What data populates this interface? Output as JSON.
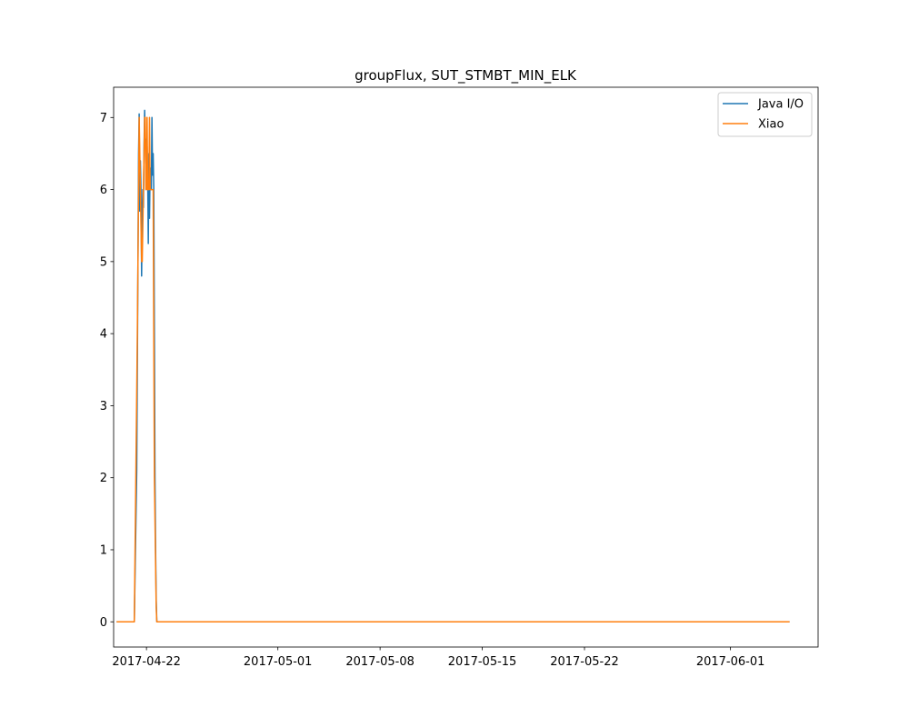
{
  "chart_data": {
    "type": "line",
    "title": "groupFlux, SUT_STMBT_MIN_ELK",
    "xlabel": "",
    "ylabel": "",
    "x_axis": {
      "kind": "date",
      "range": [
        "2017-04-19T18:00",
        "2017-06-07T00:00"
      ],
      "ticks": [
        "2017-04-22",
        "2017-05-01",
        "2017-05-08",
        "2017-05-15",
        "2017-05-22",
        "2017-06-01"
      ]
    },
    "y_axis": {
      "range": [
        -0.35,
        7.42
      ],
      "ticks": [
        "0",
        "1",
        "2",
        "3",
        "4",
        "5",
        "6",
        "7"
      ]
    },
    "grid": false,
    "legend": {
      "position": "top-right"
    },
    "series": [
      {
        "name": "Java I/O",
        "color": "#1f77b4",
        "x": [
          "2017-04-20T00:00",
          "2017-04-21T04:00",
          "2017-04-21T08:00",
          "2017-04-21T10:00",
          "2017-04-21T11:00",
          "2017-04-21T12:00",
          "2017-04-21T13:00",
          "2017-04-21T14:00",
          "2017-04-21T15:00",
          "2017-04-21T16:00",
          "2017-04-21T17:00",
          "2017-04-21T18:00",
          "2017-04-21T19:00",
          "2017-04-21T20:00",
          "2017-04-21T21:00",
          "2017-04-21T22:00",
          "2017-04-21T23:00",
          "2017-04-22T00:00",
          "2017-04-22T01:00",
          "2017-04-22T02:00",
          "2017-04-22T03:00",
          "2017-04-22T04:00",
          "2017-04-22T05:00",
          "2017-04-22T06:00",
          "2017-04-22T07:00",
          "2017-04-22T08:00",
          "2017-04-22T09:00",
          "2017-04-22T10:00",
          "2017-04-22T11:00",
          "2017-04-22T12:00",
          "2017-04-22T13:00",
          "2017-04-22T14:00",
          "2017-04-22T15:00",
          "2017-04-22T16:00",
          "2017-04-22T17:00",
          "2017-04-22T19:00",
          "2017-04-22T21:00",
          "2017-04-22T23:00",
          "2017-06-05T00:00"
        ],
        "y": [
          0,
          0,
          2.1,
          5.0,
          6.5,
          7.05,
          5.7,
          6.4,
          6.0,
          4.8,
          5.7,
          6.0,
          5.75,
          6.6,
          7.1,
          6.6,
          6.7,
          6.1,
          6.6,
          6.2,
          5.25,
          6.5,
          5.6,
          6.3,
          6.0,
          6.0,
          7.0,
          6.2,
          6.5,
          6.0,
          4.0,
          2.0,
          1.0,
          0.3,
          0,
          0,
          0,
          0,
          0
        ]
      },
      {
        "name": "Xiao",
        "color": "#ff7f0e",
        "x": [
          "2017-04-20T00:00",
          "2017-04-21T04:00",
          "2017-04-21T09:00",
          "2017-04-21T12:00",
          "2017-04-21T14:00",
          "2017-04-21T16:00",
          "2017-04-21T17:00",
          "2017-04-21T19:00",
          "2017-04-21T21:00",
          "2017-04-21T22:00",
          "2017-04-21T23:00",
          "2017-04-22T00:00",
          "2017-04-22T01:00",
          "2017-04-22T02:00",
          "2017-04-22T03:00",
          "2017-04-22T04:00",
          "2017-04-22T05:00",
          "2017-04-22T06:00",
          "2017-04-22T07:00",
          "2017-04-22T09:00",
          "2017-04-22T10:00",
          "2017-04-22T11:00",
          "2017-04-22T12:00",
          "2017-04-22T13:00",
          "2017-04-22T16:00",
          "2017-04-22T17:00",
          "2017-04-22T19:00",
          "2017-06-05T00:00"
        ],
        "y": [
          0,
          0,
          4.0,
          7.0,
          6.0,
          5.0,
          5.0,
          6.0,
          7.0,
          7.0,
          6.0,
          6.0,
          7.0,
          6.0,
          6.0,
          6.0,
          7.0,
          6.0,
          6.0,
          6.0,
          6.0,
          6.0,
          4.0,
          2.0,
          0.2,
          0,
          0,
          0
        ]
      }
    ]
  }
}
